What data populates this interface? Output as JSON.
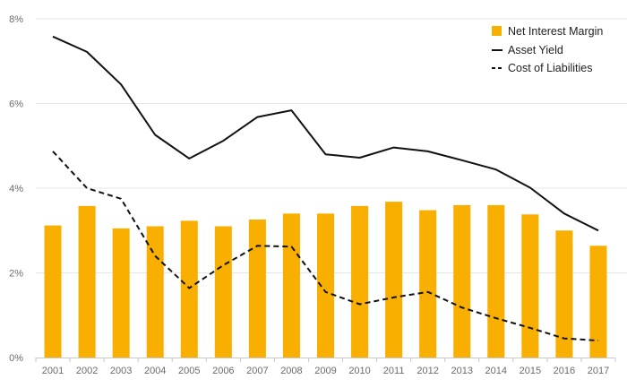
{
  "chart_data": {
    "type": "bar",
    "title": "",
    "xlabel": "",
    "ylabel": "",
    "categories": [
      "2001",
      "2002",
      "2003",
      "2004",
      "2005",
      "2006",
      "2007",
      "2008",
      "2009",
      "2010",
      "2011",
      "2012",
      "2013",
      "2014",
      "2015",
      "2016",
      "2017"
    ],
    "ylim": [
      0,
      8
    ],
    "yticks": [
      0,
      2,
      4,
      6,
      8
    ],
    "ytick_labels": [
      "0%",
      "2%",
      "4%",
      "6%",
      "8%"
    ],
    "grid": true,
    "legend_position": "top-right",
    "series": [
      {
        "name": "Net Interest Margin",
        "type": "bar",
        "color": "#F8AF00",
        "values": [
          3.12,
          3.58,
          3.05,
          3.1,
          3.23,
          3.1,
          3.26,
          3.4,
          3.4,
          3.58,
          3.68,
          3.48,
          3.6,
          3.6,
          3.38,
          3.0,
          2.64
        ]
      },
      {
        "name": "Asset Yield",
        "type": "line",
        "style": "solid",
        "color": "#111111",
        "values": [
          7.58,
          7.22,
          6.45,
          5.26,
          4.7,
          5.12,
          5.68,
          5.84,
          4.8,
          4.72,
          4.96,
          4.87,
          4.66,
          4.44,
          4.01,
          3.4,
          3.0
        ]
      },
      {
        "name": "Cost of Liabilities",
        "type": "line",
        "style": "dashed",
        "color": "#111111",
        "values": [
          4.87,
          4.0,
          3.75,
          2.4,
          1.64,
          2.18,
          2.64,
          2.62,
          1.55,
          1.26,
          1.42,
          1.55,
          1.18,
          0.93,
          0.7,
          0.45,
          0.4
        ]
      }
    ]
  }
}
